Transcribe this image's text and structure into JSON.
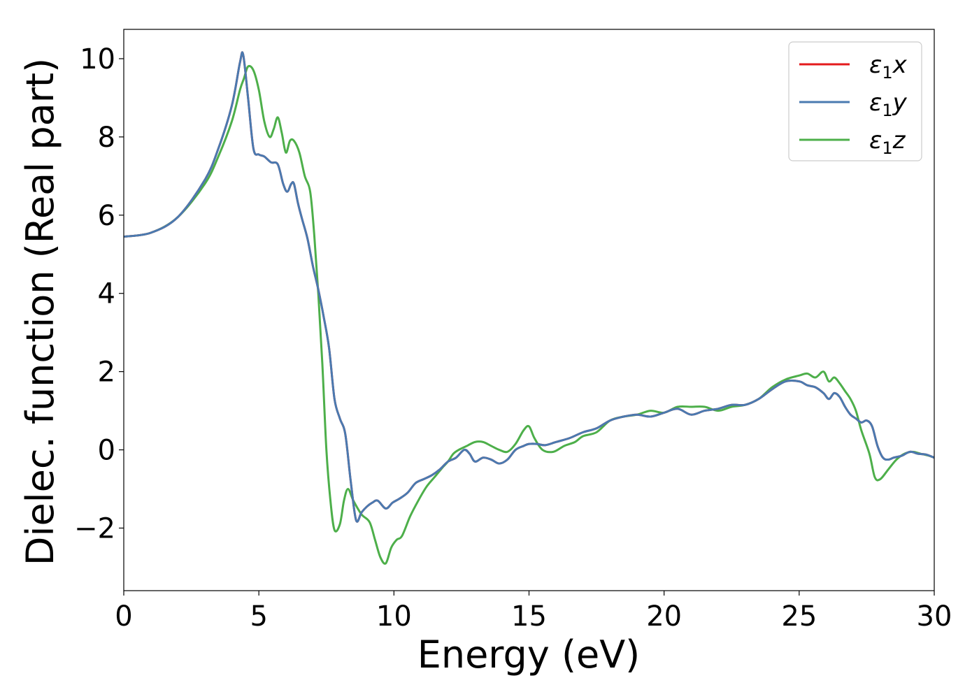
{
  "chart_data": {
    "type": "line",
    "xlabel": "Energy (eV)",
    "ylabel": "Dielec. function (Real part)",
    "xlim": [
      0,
      30
    ],
    "ylim": [
      -3.6,
      10.75
    ],
    "xticks": [
      0,
      5,
      10,
      15,
      20,
      25,
      30
    ],
    "yticks": [
      -2,
      0,
      2,
      4,
      6,
      8,
      10
    ],
    "ytick_labels": [
      "−2",
      "0",
      "2",
      "4",
      "6",
      "8",
      "10"
    ],
    "grid": false,
    "legend": "top-right",
    "series": [
      {
        "name": "ε1x",
        "legend_main": "ε",
        "legend_sub": "1",
        "legend_var": "x",
        "color": "#e41a1c",
        "x": [
          0,
          1,
          2,
          3,
          3.5,
          4.0,
          4.3,
          4.42,
          4.6,
          4.8,
          5.0,
          5.2,
          5.45,
          5.7,
          5.9,
          6.05,
          6.2,
          6.3,
          6.45,
          6.6,
          6.8,
          7.0,
          7.2,
          7.4,
          7.6,
          7.8,
          8.0,
          8.2,
          8.4,
          8.6,
          8.8,
          9.0,
          9.2,
          9.4,
          9.7,
          9.95,
          10.2,
          10.5,
          10.8,
          11.1,
          11.4,
          11.7,
          12.0,
          12.3,
          12.6,
          12.8,
          13.0,
          13.3,
          13.6,
          13.9,
          14.2,
          14.5,
          14.8,
          15.0,
          15.3,
          15.6,
          16.0,
          16.5,
          17.0,
          17.5,
          18.0,
          18.5,
          19.0,
          19.5,
          20.0,
          20.5,
          21.0,
          21.5,
          22.0,
          22.5,
          23.0,
          23.5,
          24.0,
          24.5,
          25.0,
          25.3,
          25.6,
          25.9,
          26.1,
          26.3,
          26.5,
          26.7,
          26.9,
          27.1,
          27.3,
          27.5,
          27.7,
          27.9,
          28.1,
          28.3,
          28.5,
          28.8,
          29.1,
          29.4,
          29.7,
          30.0
        ],
        "y": [
          5.45,
          5.55,
          5.95,
          6.9,
          7.7,
          8.8,
          9.9,
          10.1,
          9.0,
          7.7,
          7.55,
          7.5,
          7.35,
          7.3,
          6.8,
          6.6,
          6.8,
          6.8,
          6.3,
          5.9,
          5.4,
          4.7,
          4.1,
          3.4,
          2.6,
          1.3,
          0.8,
          0.4,
          -0.8,
          -1.8,
          -1.6,
          -1.45,
          -1.35,
          -1.3,
          -1.5,
          -1.35,
          -1.25,
          -1.1,
          -0.85,
          -0.75,
          -0.65,
          -0.5,
          -0.3,
          -0.2,
          0.0,
          -0.1,
          -0.3,
          -0.2,
          -0.25,
          -0.35,
          -0.25,
          0.0,
          0.1,
          0.15,
          0.15,
          0.12,
          0.2,
          0.3,
          0.45,
          0.55,
          0.75,
          0.85,
          0.9,
          0.85,
          0.95,
          1.05,
          0.9,
          1.0,
          1.05,
          1.15,
          1.15,
          1.3,
          1.55,
          1.75,
          1.75,
          1.65,
          1.6,
          1.45,
          1.3,
          1.45,
          1.35,
          1.1,
          0.9,
          0.8,
          0.7,
          0.75,
          0.6,
          0.1,
          -0.2,
          -0.25,
          -0.2,
          -0.15,
          -0.05,
          -0.1,
          -0.12,
          -0.2
        ]
      },
      {
        "name": "ε1y",
        "legend_main": "ε",
        "legend_sub": "1",
        "legend_var": "y",
        "color": "#4a7ab0",
        "x": [
          0,
          1,
          2,
          3,
          3.5,
          4.0,
          4.3,
          4.42,
          4.6,
          4.8,
          5.0,
          5.2,
          5.45,
          5.7,
          5.9,
          6.05,
          6.2,
          6.3,
          6.45,
          6.6,
          6.8,
          7.0,
          7.2,
          7.4,
          7.6,
          7.8,
          8.0,
          8.2,
          8.4,
          8.6,
          8.8,
          9.0,
          9.2,
          9.4,
          9.7,
          9.95,
          10.2,
          10.5,
          10.8,
          11.1,
          11.4,
          11.7,
          12.0,
          12.3,
          12.6,
          12.8,
          13.0,
          13.3,
          13.6,
          13.9,
          14.2,
          14.5,
          14.8,
          15.0,
          15.3,
          15.6,
          16.0,
          16.5,
          17.0,
          17.5,
          18.0,
          18.5,
          19.0,
          19.5,
          20.0,
          20.5,
          21.0,
          21.5,
          22.0,
          22.5,
          23.0,
          23.5,
          24.0,
          24.5,
          25.0,
          25.3,
          25.6,
          25.9,
          26.1,
          26.3,
          26.5,
          26.7,
          26.9,
          27.1,
          27.3,
          27.5,
          27.7,
          27.9,
          28.1,
          28.3,
          28.5,
          28.8,
          29.1,
          29.4,
          29.7,
          30.0
        ],
        "y": [
          5.45,
          5.55,
          5.95,
          6.9,
          7.7,
          8.8,
          9.9,
          10.1,
          9.0,
          7.7,
          7.55,
          7.5,
          7.35,
          7.3,
          6.8,
          6.6,
          6.8,
          6.8,
          6.3,
          5.9,
          5.4,
          4.7,
          4.1,
          3.4,
          2.6,
          1.3,
          0.8,
          0.4,
          -0.8,
          -1.8,
          -1.6,
          -1.45,
          -1.35,
          -1.3,
          -1.5,
          -1.35,
          -1.25,
          -1.1,
          -0.85,
          -0.75,
          -0.65,
          -0.5,
          -0.3,
          -0.2,
          0.0,
          -0.1,
          -0.3,
          -0.2,
          -0.25,
          -0.35,
          -0.25,
          0.0,
          0.1,
          0.15,
          0.15,
          0.12,
          0.2,
          0.3,
          0.45,
          0.55,
          0.75,
          0.85,
          0.9,
          0.85,
          0.95,
          1.05,
          0.9,
          1.0,
          1.05,
          1.15,
          1.15,
          1.3,
          1.55,
          1.75,
          1.75,
          1.65,
          1.6,
          1.45,
          1.3,
          1.45,
          1.35,
          1.1,
          0.9,
          0.8,
          0.7,
          0.75,
          0.6,
          0.1,
          -0.2,
          -0.25,
          -0.2,
          -0.15,
          -0.05,
          -0.1,
          -0.12,
          -0.2
        ]
      },
      {
        "name": "ε1z",
        "legend_main": "ε",
        "legend_sub": "1",
        "legend_var": "z",
        "color": "#4daf4a",
        "x": [
          0,
          1,
          2,
          3,
          3.5,
          4.0,
          4.3,
          4.45,
          4.6,
          4.8,
          5.0,
          5.2,
          5.4,
          5.55,
          5.7,
          5.85,
          6.0,
          6.15,
          6.3,
          6.5,
          6.7,
          6.9,
          7.05,
          7.2,
          7.35,
          7.5,
          7.65,
          7.8,
          8.0,
          8.15,
          8.3,
          8.5,
          8.8,
          9.1,
          9.3,
          9.5,
          9.7,
          9.9,
          10.1,
          10.3,
          10.6,
          10.9,
          11.2,
          11.5,
          11.8,
          12.0,
          12.2,
          12.4,
          12.7,
          13.0,
          13.3,
          13.6,
          13.9,
          14.2,
          14.5,
          14.8,
          15.0,
          15.2,
          15.5,
          15.9,
          16.3,
          16.7,
          17.0,
          17.5,
          18.0,
          18.5,
          19.0,
          19.5,
          20.0,
          20.5,
          21.0,
          21.5,
          22.0,
          22.5,
          23.0,
          23.5,
          24.0,
          24.5,
          25.0,
          25.3,
          25.6,
          25.9,
          26.1,
          26.3,
          26.5,
          26.7,
          26.9,
          27.1,
          27.3,
          27.6,
          27.8,
          28.0,
          28.3,
          28.6,
          28.9,
          29.2,
          29.5,
          29.8,
          30.0
        ],
        "y": [
          5.45,
          5.55,
          5.95,
          6.8,
          7.5,
          8.4,
          9.2,
          9.5,
          9.8,
          9.7,
          9.2,
          8.4,
          8.0,
          8.2,
          8.5,
          8.1,
          7.6,
          7.9,
          7.9,
          7.6,
          7.0,
          6.6,
          5.5,
          4.0,
          2.2,
          0.0,
          -1.3,
          -2.05,
          -1.9,
          -1.3,
          -1.0,
          -1.3,
          -1.65,
          -1.85,
          -2.3,
          -2.75,
          -2.9,
          -2.5,
          -2.3,
          -2.2,
          -1.7,
          -1.3,
          -0.95,
          -0.7,
          -0.45,
          -0.3,
          -0.1,
          0.0,
          0.1,
          0.2,
          0.2,
          0.1,
          0.0,
          -0.05,
          0.15,
          0.5,
          0.6,
          0.3,
          0.0,
          -0.05,
          0.1,
          0.2,
          0.35,
          0.45,
          0.75,
          0.85,
          0.9,
          1.0,
          0.95,
          1.1,
          1.1,
          1.1,
          1.0,
          1.1,
          1.15,
          1.3,
          1.6,
          1.8,
          1.9,
          1.95,
          1.85,
          2.0,
          1.75,
          1.85,
          1.7,
          1.5,
          1.3,
          1.0,
          0.5,
          -0.1,
          -0.7,
          -0.75,
          -0.5,
          -0.25,
          -0.1,
          -0.05,
          -0.1,
          -0.15,
          -0.2
        ]
      }
    ]
  }
}
